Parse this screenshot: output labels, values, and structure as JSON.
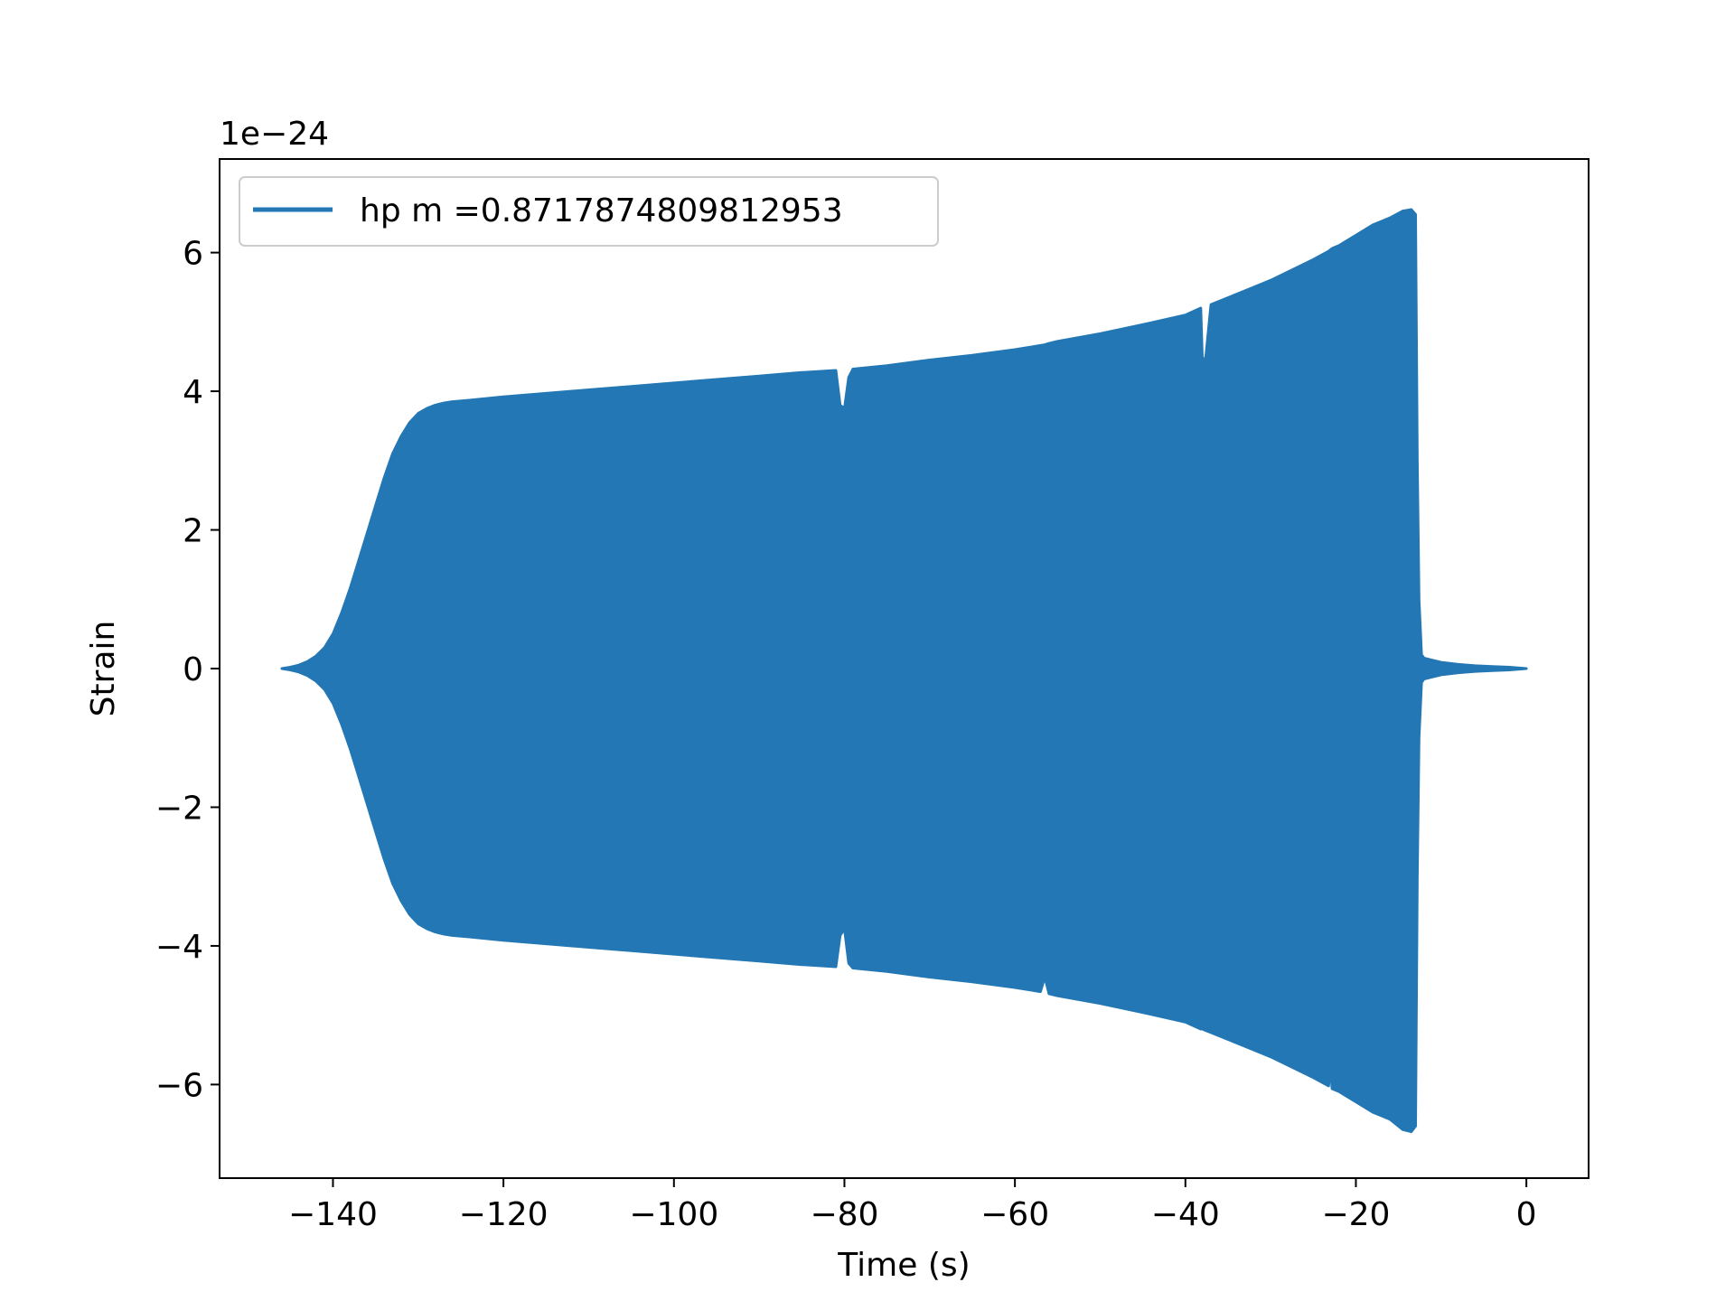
{
  "chart_data": {
    "type": "line",
    "title": "",
    "xlabel": "Time (s)",
    "ylabel": "Strain",
    "y_offset_label": "1e−24",
    "xlim": [
      -153.3,
      7.3
    ],
    "ylim": [
      -7.35,
      7.35
    ],
    "x_ticks": [
      -140,
      -120,
      -100,
      -80,
      -60,
      -40,
      -20,
      0
    ],
    "x_tick_labels": [
      "−140",
      "−120",
      "−100",
      "−80",
      "−60",
      "−40",
      "−20",
      "0"
    ],
    "y_ticks": [
      -6,
      -4,
      -2,
      0,
      2,
      4,
      6
    ],
    "y_tick_labels": [
      "−6",
      "−4",
      "−2",
      "0",
      "2",
      "4",
      "6"
    ],
    "grid": false,
    "legend_position": "upper-left",
    "series": [
      {
        "name": "hp m =0.8717874809812953",
        "color": "#2277b4",
        "envelope": {
          "x": [
            -146,
            -145,
            -144,
            -143,
            -142,
            -141,
            -140,
            -139,
            -138,
            -137,
            -136,
            -135,
            -134,
            -133,
            -132,
            -131,
            -130,
            -129,
            -128,
            -127,
            -126,
            -124,
            -120,
            -115,
            -110,
            -105,
            -100,
            -95,
            -90,
            -85,
            -81,
            -80.5,
            -80,
            -79.5,
            -79,
            -75,
            -70,
            -65,
            -60,
            -57,
            -56.5,
            -56,
            -55,
            -50,
            -45,
            -40,
            -38.2,
            -38,
            -37.6,
            -37,
            -35,
            -30,
            -25,
            -23.2,
            -23,
            -22.8,
            -22,
            -20,
            -18,
            -16,
            -14.5,
            -13.5,
            -13,
            -12.8,
            -12.6,
            -12.3,
            -12,
            -11,
            -10,
            -8,
            -6,
            -4,
            -2,
            0
          ],
          "upper": [
            0.0,
            0.02,
            0.05,
            0.1,
            0.18,
            0.3,
            0.5,
            0.8,
            1.15,
            1.55,
            1.95,
            2.35,
            2.75,
            3.1,
            3.35,
            3.55,
            3.68,
            3.75,
            3.8,
            3.83,
            3.85,
            3.87,
            3.92,
            3.97,
            4.02,
            4.07,
            4.12,
            4.17,
            4.22,
            4.27,
            4.3,
            3.8,
            3.75,
            4.2,
            4.32,
            4.37,
            4.45,
            4.52,
            4.6,
            4.66,
            4.67,
            4.69,
            4.72,
            4.83,
            4.96,
            5.1,
            5.2,
            4.4,
            4.5,
            5.25,
            5.35,
            5.6,
            5.9,
            6.02,
            6.04,
            6.06,
            6.1,
            6.25,
            6.4,
            6.5,
            6.6,
            6.62,
            6.55,
            3.0,
            1.0,
            0.2,
            0.15,
            0.12,
            0.09,
            0.06,
            0.04,
            0.03,
            0.02,
            0.0
          ],
          "lower": [
            0.0,
            -0.02,
            -0.05,
            -0.1,
            -0.18,
            -0.3,
            -0.5,
            -0.8,
            -1.15,
            -1.55,
            -1.95,
            -2.35,
            -2.75,
            -3.1,
            -3.35,
            -3.55,
            -3.68,
            -3.75,
            -3.8,
            -3.83,
            -3.85,
            -3.87,
            -3.92,
            -3.97,
            -4.02,
            -4.07,
            -4.12,
            -4.17,
            -4.22,
            -4.27,
            -4.3,
            -3.85,
            -3.75,
            -4.25,
            -4.32,
            -4.37,
            -4.45,
            -4.52,
            -4.6,
            -4.66,
            -4.45,
            -4.69,
            -4.72,
            -4.83,
            -4.96,
            -5.1,
            -5.2,
            -5.2,
            -5.22,
            -5.25,
            -5.35,
            -5.6,
            -5.9,
            -6.02,
            -5.7,
            -6.06,
            -6.1,
            -6.25,
            -6.4,
            -6.5,
            -6.65,
            -6.68,
            -6.6,
            -3.0,
            -1.0,
            -0.2,
            -0.15,
            -0.12,
            -0.09,
            -0.06,
            -0.04,
            -0.03,
            -0.02,
            0.0
          ]
        }
      }
    ]
  }
}
